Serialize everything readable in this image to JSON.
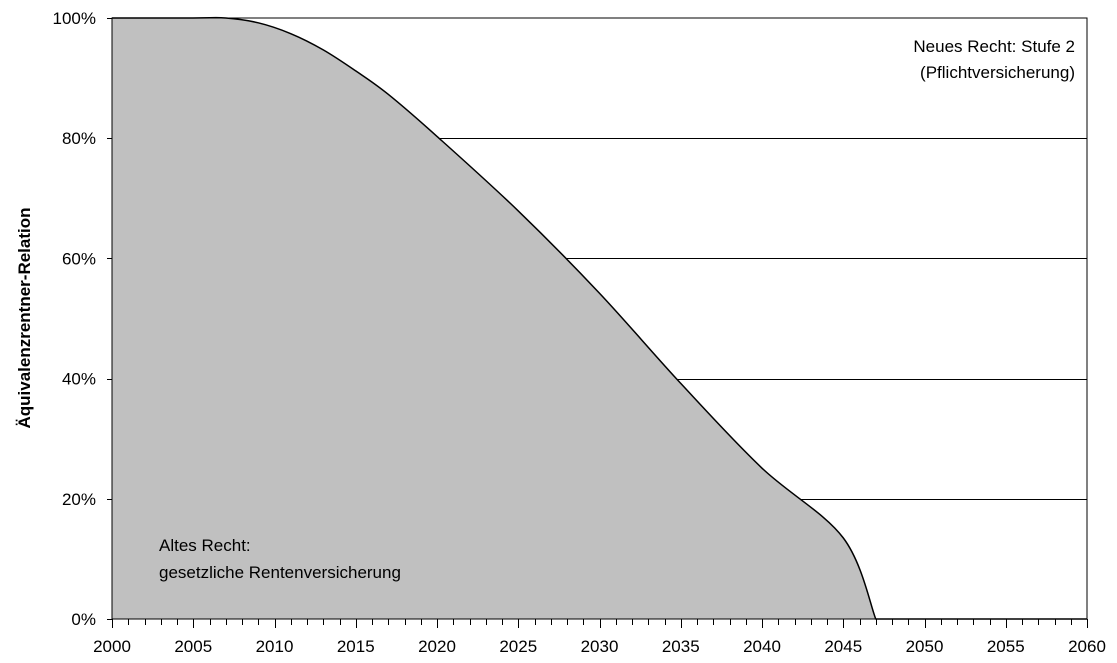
{
  "chart_data": {
    "type": "area",
    "title": "",
    "xlabel": "",
    "ylabel": "Äquivalenzrentner-Relation",
    "xlim": [
      2000,
      2060
    ],
    "ylim": [
      0,
      100
    ],
    "x_ticks": [
      2000,
      2005,
      2010,
      2015,
      2020,
      2025,
      2030,
      2035,
      2040,
      2045,
      2050,
      2055,
      2060
    ],
    "x_tick_labels": [
      "2000",
      "2005",
      "2010",
      "2015",
      "2020",
      "2025",
      "2030",
      "2035",
      "2040",
      "2045",
      "2050",
      "2055",
      "2060"
    ],
    "x_minor_step": 1,
    "y_ticks": [
      0,
      20,
      40,
      60,
      80,
      100
    ],
    "y_tick_labels": [
      "0%",
      "20%",
      "40%",
      "60%",
      "80%",
      "100%"
    ],
    "grid": "horizontal",
    "legend": "none",
    "series": [
      {
        "x": [
          2000,
          2005,
          2007,
          2009,
          2011,
          2013,
          2015,
          2017,
          2020,
          2025,
          2030,
          2035,
          2040,
          2045,
          2047,
          2060
        ],
        "values": [
          100,
          100,
          100,
          99.2,
          97.4,
          94.7,
          91.2,
          87.3,
          80.3,
          67.9,
          54.2,
          39.2,
          25.1,
          13.5,
          0,
          0
        ]
      }
    ],
    "annotations": {
      "new_law": [
        "Neues Recht: Stufe 2",
        "(Pflichtversicherung)"
      ],
      "old_law": [
        "Altes Recht:",
        "gesetzliche Rentenversicherung"
      ]
    },
    "colors": {
      "area_fill": "#c0c0c0",
      "line": "#000000",
      "grid": "#000000",
      "background": "#ffffff"
    }
  }
}
